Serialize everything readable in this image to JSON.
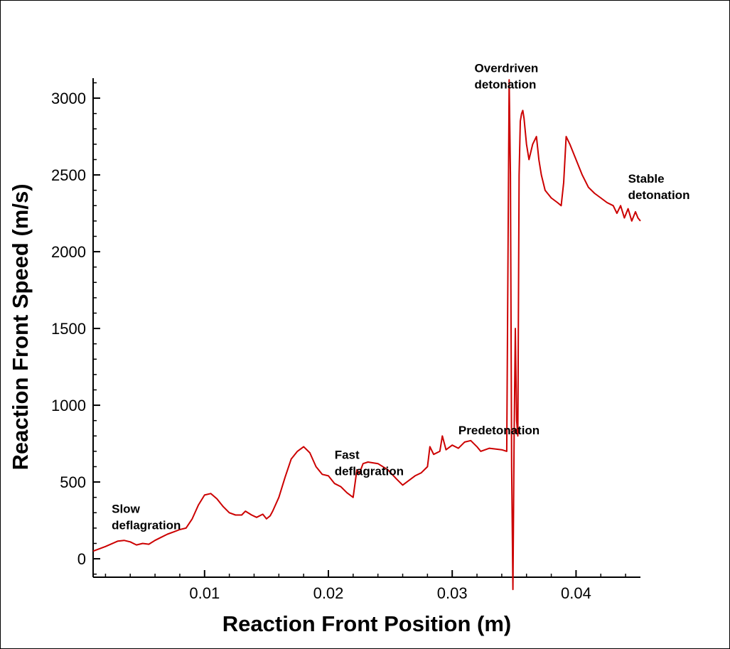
{
  "chart_data": {
    "type": "line",
    "title": "",
    "xlabel": "Reaction Front Position (m)",
    "ylabel": "Reaction Front Speed (m/s)",
    "xlim": [
      0.001,
      0.0452
    ],
    "ylim": [
      -120,
      3130
    ],
    "xticks": [
      0.01,
      0.02,
      0.03,
      0.04
    ],
    "xtick_labels": [
      "0.01",
      "0.02",
      "0.03",
      "0.04"
    ],
    "yticks": [
      0,
      500,
      1000,
      1500,
      2000,
      2500,
      3000
    ],
    "ytick_labels": [
      "0",
      "500",
      "1000",
      "1500",
      "2000",
      "2500",
      "3000"
    ],
    "grid": false,
    "series": [
      {
        "name": "Reaction front speed",
        "color": "#cc0000",
        "x": [
          0.001,
          0.002,
          0.003,
          0.0035,
          0.004,
          0.0045,
          0.005,
          0.0055,
          0.006,
          0.0065,
          0.007,
          0.0075,
          0.008,
          0.0085,
          0.009,
          0.0095,
          0.01,
          0.0105,
          0.011,
          0.0115,
          0.012,
          0.0125,
          0.013,
          0.0133,
          0.0138,
          0.0142,
          0.0147,
          0.015,
          0.0153,
          0.0155,
          0.016,
          0.0165,
          0.017,
          0.0175,
          0.018,
          0.0185,
          0.019,
          0.0195,
          0.02,
          0.0205,
          0.021,
          0.0215,
          0.022,
          0.0223,
          0.0225,
          0.0228,
          0.0232,
          0.024,
          0.0248,
          0.0255,
          0.026,
          0.0265,
          0.027,
          0.0275,
          0.028,
          0.0282,
          0.0285,
          0.029,
          0.0292,
          0.0295,
          0.03,
          0.0305,
          0.031,
          0.0315,
          0.032,
          0.0323,
          0.033,
          0.034,
          0.0344,
          0.0346,
          0.0347,
          0.0348,
          0.0349,
          0.035,
          0.0351,
          0.0352,
          0.0353,
          0.0354,
          0.0355,
          0.0356,
          0.0357,
          0.0358,
          0.036,
          0.0362,
          0.0365,
          0.0368,
          0.037,
          0.0372,
          0.0375,
          0.038,
          0.0385,
          0.0388,
          0.039,
          0.0392,
          0.0395,
          0.04,
          0.0405,
          0.041,
          0.0415,
          0.042,
          0.0425,
          0.043,
          0.0433,
          0.0436,
          0.0439,
          0.0442,
          0.0445,
          0.0448,
          0.045,
          0.0452
        ],
        "values": [
          50,
          80,
          115,
          120,
          110,
          90,
          100,
          95,
          120,
          140,
          160,
          175,
          190,
          200,
          260,
          350,
          415,
          425,
          390,
          340,
          300,
          285,
          285,
          310,
          285,
          270,
          290,
          260,
          280,
          310,
          400,
          530,
          650,
          700,
          730,
          690,
          600,
          550,
          540,
          490,
          470,
          430,
          400,
          580,
          555,
          620,
          630,
          620,
          580,
          520,
          480,
          510,
          540,
          560,
          600,
          730,
          680,
          700,
          800,
          710,
          740,
          720,
          760,
          770,
          730,
          700,
          720,
          710,
          700,
          3120,
          2500,
          600,
          -200,
          800,
          1500,
          900,
          800,
          2500,
          2850,
          2900,
          2920,
          2870,
          2700,
          2600,
          2700,
          2750,
          2600,
          2500,
          2400,
          2350,
          2320,
          2300,
          2450,
          2750,
          2700,
          2600,
          2500,
          2420,
          2380,
          2350,
          2320,
          2300,
          2250,
          2300,
          2220,
          2280,
          2200,
          2260,
          2220,
          2200
        ]
      }
    ],
    "annotations": [
      {
        "lines": [
          "Slow",
          "deflagration"
        ],
        "x": 0.0025,
        "y": 300
      },
      {
        "lines": [
          "Fast",
          "deflagration"
        ],
        "x": 0.0205,
        "y": 650
      },
      {
        "lines": [
          "Predetonation"
        ],
        "x": 0.0305,
        "y": 810
      },
      {
        "lines": [
          "Overdriven",
          "detonation"
        ],
        "x": 0.0318,
        "y": 3170
      },
      {
        "lines": [
          "Stable",
          "detonation"
        ],
        "x": 0.0442,
        "y": 2450
      }
    ]
  }
}
